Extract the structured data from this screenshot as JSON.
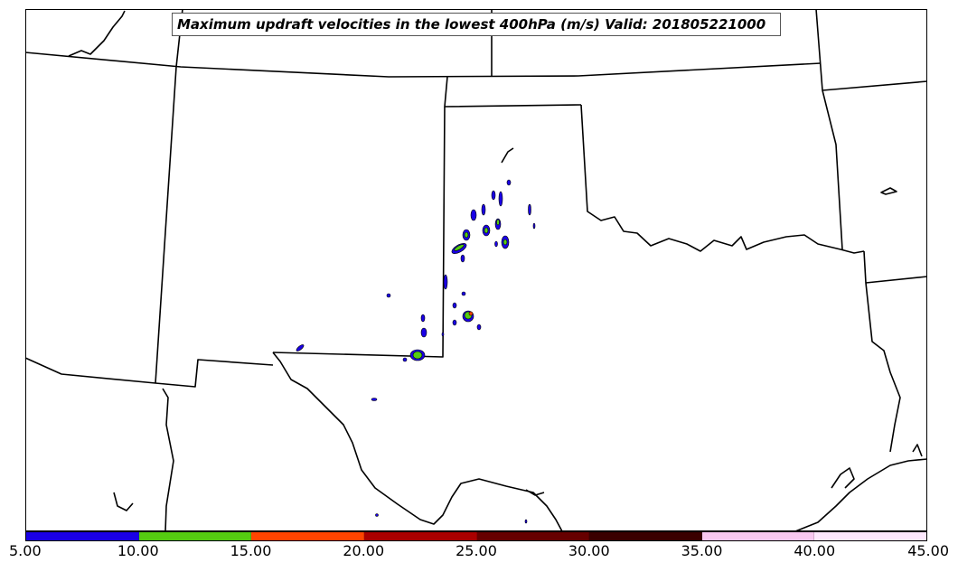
{
  "title": "Maximum updraft velocities in the lowest 400hPa (m/s) Valid: 201805221000",
  "colorbar": {
    "levels": [
      "5.00",
      "10.00",
      "15.00",
      "20.00",
      "25.00",
      "30.00",
      "35.00",
      "40.00",
      "45.00"
    ],
    "colors": [
      "#1a00e6",
      "#55cc11",
      "#ff4400",
      "#aa0000",
      "#660000",
      "#3a0000",
      "#f8c8f0",
      "#fde8fd"
    ]
  },
  "colors": {
    "boundary": "#000000",
    "updraft_low": "#1a00e6",
    "updraft_mid": "#55cc11",
    "updraft_high": "#ff4400"
  }
}
